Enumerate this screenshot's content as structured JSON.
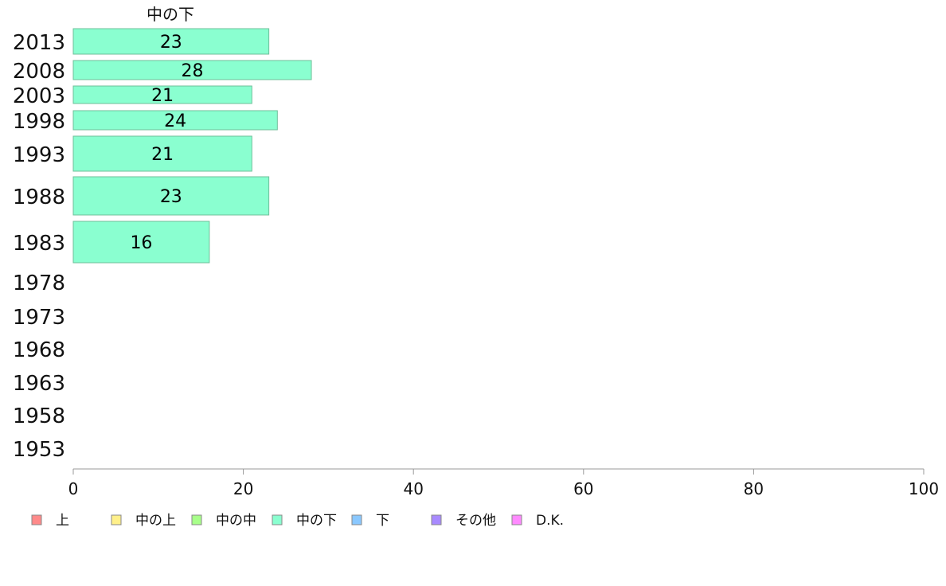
{
  "chart_data": {
    "type": "bar",
    "orientation": "horizontal",
    "series_title": "中の下",
    "categories": [
      "2013",
      "2008",
      "2003",
      "1998",
      "1993",
      "1988",
      "1983",
      "1978",
      "1973",
      "1968",
      "1963",
      "1958",
      "1953"
    ],
    "series": [
      {
        "name": "中の下",
        "values": [
          23,
          28,
          21,
          24,
          21,
          23,
          16,
          null,
          null,
          null,
          null,
          null,
          null
        ]
      }
    ],
    "value_labels": [
      "23",
      "28",
      "21",
      "24",
      "21",
      "23",
      "16",
      "",
      "",
      "",
      "",
      "",
      ""
    ],
    "x_ticks": [
      "0",
      "20",
      "40",
      "60",
      "80",
      "100"
    ],
    "xlim": [
      0,
      100
    ],
    "legend": {
      "placement": "bottom",
      "items": [
        {
          "label": "上",
          "color": "#ff8a8a"
        },
        {
          "label": "中の上",
          "color": "#fff08a"
        },
        {
          "label": "中の中",
          "color": "#a8ff8a"
        },
        {
          "label": "中の下",
          "color": "#8affd0"
        },
        {
          "label": "下",
          "color": "#8ac8ff"
        },
        {
          "label": "その他",
          "color": "#a88aff"
        },
        {
          "label": "D.K.",
          "color": "#ff8aff"
        }
      ]
    },
    "bar_color": "#8affd0",
    "grid": false
  }
}
